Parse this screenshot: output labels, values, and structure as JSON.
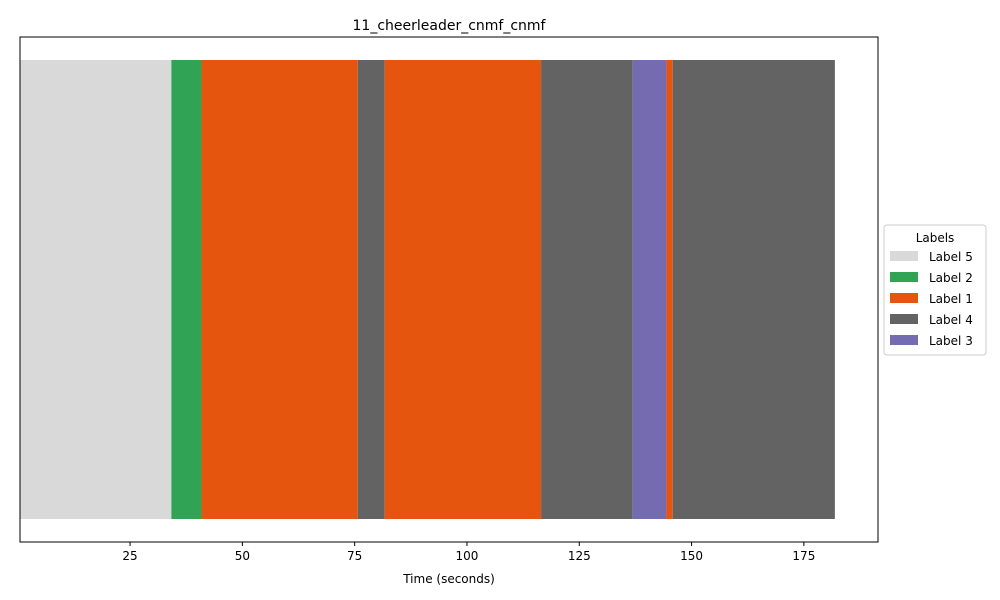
{
  "chart_data": {
    "type": "bar",
    "title": "11_cheerleader_cnmf_cnmf",
    "xlabel": "Time (seconds)",
    "ylabel": "",
    "xlim": [
      0.5,
      191.5
    ],
    "xticks": [
      25,
      50,
      75,
      100,
      125,
      150,
      175
    ],
    "segments": [
      {
        "label": "Label 5",
        "start": 0.0,
        "end": 34.2
      },
      {
        "label": "Label 2",
        "start": 34.2,
        "end": 40.9
      },
      {
        "label": "Label 1",
        "start": 40.9,
        "end": 75.7
      },
      {
        "label": "Label 4",
        "start": 75.7,
        "end": 81.7
      },
      {
        "label": "Label 1",
        "start": 81.7,
        "end": 116.5
      },
      {
        "label": "Label 4",
        "start": 116.5,
        "end": 136.9
      },
      {
        "label": "Label 3",
        "start": 136.9,
        "end": 144.4
      },
      {
        "label": "Label 1",
        "start": 144.4,
        "end": 145.8
      },
      {
        "label": "Label 4",
        "start": 145.8,
        "end": 181.9
      }
    ],
    "legend": {
      "title": "Labels",
      "placement": "center-right-outside",
      "entries": [
        {
          "label": "Label 5",
          "color": "#d9d9d9"
        },
        {
          "label": "Label 2",
          "color": "#31a354"
        },
        {
          "label": "Label 1",
          "color": "#e6550d"
        },
        {
          "label": "Label 4",
          "color": "#636363"
        },
        {
          "label": "Label 3",
          "color": "#756bb1"
        }
      ]
    },
    "grid": false
  }
}
